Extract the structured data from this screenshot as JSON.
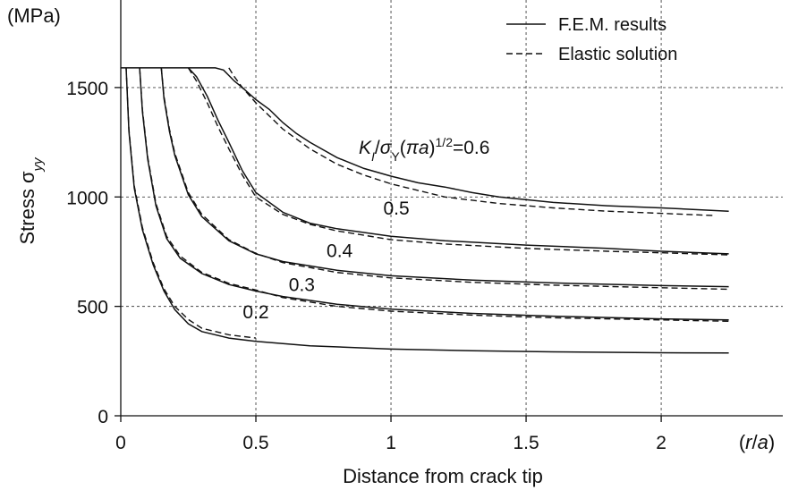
{
  "chart_data": {
    "type": "line",
    "title": "",
    "xlabel": "Distance from crack tip",
    "x_unit": "(r/a)",
    "ylabel": "Stress σyy",
    "y_unit": "(MPa)",
    "xlim": [
      0,
      2.45
    ],
    "ylim": [
      0,
      1900
    ],
    "x_ticks": [
      "0",
      "0.5",
      "1",
      "1.5",
      "2"
    ],
    "x_tick_values": [
      0,
      0.5,
      1,
      1.5,
      2
    ],
    "y_ticks": [
      "0",
      "500",
      "1000",
      "1500"
    ],
    "y_tick_values": [
      0,
      500,
      1000,
      1500
    ],
    "grid": true,
    "legend_position": "top-right",
    "legend": [
      {
        "label": "F.E.M. results",
        "style": "solid"
      },
      {
        "label": "Elastic solution",
        "style": "dashed"
      }
    ],
    "parameter_label": "KI/σY(πa)1/2=0.6",
    "yield_cap": 1590,
    "series": [
      {
        "label": "0.2",
        "style": "solid",
        "x": [
          0.02,
          0.03,
          0.05,
          0.08,
          0.12,
          0.16,
          0.2,
          0.25,
          0.3,
          0.4,
          0.5,
          0.7,
          1.0,
          1.3,
          1.6,
          2.0,
          2.25
        ],
        "y": [
          1590,
          1300,
          1040,
          850,
          690,
          570,
          485,
          420,
          385,
          355,
          340,
          320,
          305,
          297,
          292,
          288,
          287
        ]
      },
      {
        "label": "0.2",
        "style": "dashed",
        "x": [
          0.02,
          0.03,
          0.05,
          0.08,
          0.12,
          0.16,
          0.2,
          0.25,
          0.3,
          0.4,
          0.5
        ],
        "y": [
          1590,
          1310,
          1050,
          860,
          700,
          580,
          500,
          440,
          400,
          370,
          355
        ]
      },
      {
        "label": "0.3",
        "style": "solid",
        "x": [
          0.07,
          0.08,
          0.1,
          0.13,
          0.17,
          0.22,
          0.3,
          0.4,
          0.5,
          0.6,
          0.8,
          1.0,
          1.3,
          1.6,
          2.0,
          2.25
        ],
        "y": [
          1590,
          1390,
          1170,
          960,
          810,
          720,
          650,
          600,
          570,
          545,
          510,
          487,
          468,
          455,
          443,
          438
        ]
      },
      {
        "label": "0.3",
        "style": "dashed",
        "x": [
          0.07,
          0.08,
          0.1,
          0.13,
          0.17,
          0.22,
          0.3,
          0.4,
          0.5,
          0.6,
          0.8,
          1.0,
          1.3,
          1.6,
          2.0,
          2.25
        ],
        "y": [
          1590,
          1400,
          1180,
          970,
          820,
          730,
          655,
          605,
          575,
          540,
          500,
          478,
          460,
          448,
          438,
          432
        ]
      },
      {
        "label": "0.4",
        "style": "solid",
        "x": [
          0.15,
          0.16,
          0.18,
          0.2,
          0.25,
          0.3,
          0.4,
          0.5,
          0.6,
          0.8,
          1.0,
          1.3,
          1.6,
          2.0,
          2.25
        ],
        "y": [
          1590,
          1450,
          1300,
          1190,
          1010,
          910,
          800,
          740,
          705,
          665,
          640,
          620,
          607,
          595,
          590
        ]
      },
      {
        "label": "0.4",
        "style": "dashed",
        "x": [
          0.15,
          0.16,
          0.18,
          0.2,
          0.25,
          0.3,
          0.4,
          0.5,
          0.6,
          0.8,
          1.0,
          1.3,
          1.6,
          2.0,
          2.25
        ],
        "y": [
          1590,
          1460,
          1310,
          1200,
          1020,
          920,
          805,
          742,
          700,
          655,
          630,
          610,
          597,
          585,
          578
        ]
      },
      {
        "label": "0.5",
        "style": "solid",
        "x": [
          0.25,
          0.28,
          0.32,
          0.36,
          0.4,
          0.45,
          0.5,
          0.6,
          0.7,
          0.8,
          1.0,
          1.2,
          1.5,
          1.8,
          2.0,
          2.25
        ],
        "y": [
          1590,
          1550,
          1460,
          1350,
          1250,
          1120,
          1020,
          930,
          880,
          855,
          820,
          800,
          780,
          765,
          752,
          740
        ]
      },
      {
        "label": "0.5",
        "style": "dashed",
        "x": [
          0.25,
          0.28,
          0.32,
          0.36,
          0.4,
          0.45,
          0.5,
          0.6,
          0.7,
          0.8,
          1.0,
          1.2,
          1.5,
          1.8,
          2.0,
          2.25
        ],
        "y": [
          1590,
          1530,
          1430,
          1320,
          1220,
          1100,
          1000,
          920,
          875,
          845,
          805,
          785,
          765,
          752,
          745,
          735
        ]
      },
      {
        "label": "0.6",
        "style": "solid",
        "x": [
          0.25,
          0.3,
          0.35,
          0.38,
          0.4,
          0.42,
          0.45,
          0.5,
          0.55,
          0.6,
          0.65,
          0.7,
          0.8,
          0.9,
          1.0,
          1.1,
          1.2,
          1.3,
          1.4,
          1.6,
          1.8,
          2.0,
          2.25
        ],
        "y": [
          1590,
          1590,
          1590,
          1580,
          1555,
          1530,
          1500,
          1445,
          1400,
          1340,
          1290,
          1250,
          1180,
          1130,
          1095,
          1065,
          1045,
          1020,
          1000,
          975,
          960,
          950,
          935
        ]
      },
      {
        "label": "0.6",
        "style": "dashed",
        "x": [
          0.4,
          0.42,
          0.45,
          0.5,
          0.55,
          0.6,
          0.7,
          0.8,
          0.9,
          1.0,
          1.2,
          1.4,
          1.6,
          1.8,
          2.0,
          2.2
        ],
        "y": [
          1590,
          1550,
          1500,
          1430,
          1370,
          1310,
          1220,
          1150,
          1100,
          1060,
          1000,
          970,
          950,
          935,
          925,
          915
        ]
      }
    ],
    "curve_labels": [
      {
        "text": "0.2",
        "x": 0.5,
        "y": 445
      },
      {
        "text": "0.3",
        "x": 0.67,
        "y": 570
      },
      {
        "text": "0.4",
        "x": 0.81,
        "y": 725
      },
      {
        "text": "0.5",
        "x": 1.02,
        "y": 920
      }
    ]
  }
}
